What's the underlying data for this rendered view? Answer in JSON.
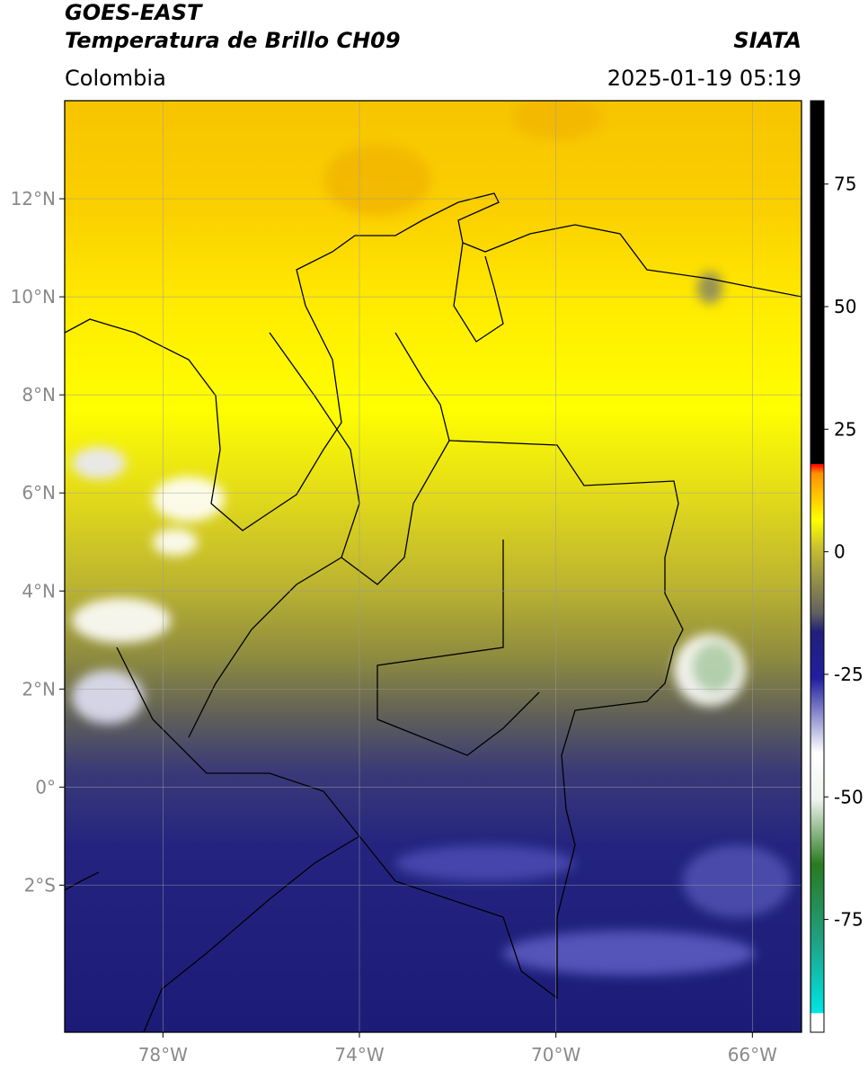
{
  "header": {
    "title": "GOES-EAST",
    "subtitle": "Temperatura de Brillo CH09",
    "region": "Colombia",
    "source": "SIATA",
    "datetime": "2025-01-19 05:19"
  },
  "map": {
    "xlim": [
      -80,
      -65
    ],
    "ylim": [
      -5,
      14
    ],
    "xticks": [
      {
        "value": -78,
        "label": "78°W"
      },
      {
        "value": -74,
        "label": "74°W"
      },
      {
        "value": -70,
        "label": "70°W"
      },
      {
        "value": -66,
        "label": "66°W"
      }
    ],
    "yticks": [
      {
        "value": 12,
        "label": "12°N"
      },
      {
        "value": 10,
        "label": "10°N"
      },
      {
        "value": 8,
        "label": "8°N"
      },
      {
        "value": 6,
        "label": "6°N"
      },
      {
        "value": 4,
        "label": "4°N"
      },
      {
        "value": 2,
        "label": "2°N"
      },
      {
        "value": 0,
        "label": "0°"
      },
      {
        "value": -2,
        "label": "2°S"
      }
    ],
    "grid": true
  },
  "colorbar": {
    "lim": [
      -98,
      92
    ],
    "ticks": [
      75,
      50,
      25,
      0,
      -25,
      -50,
      -75
    ]
  }
}
